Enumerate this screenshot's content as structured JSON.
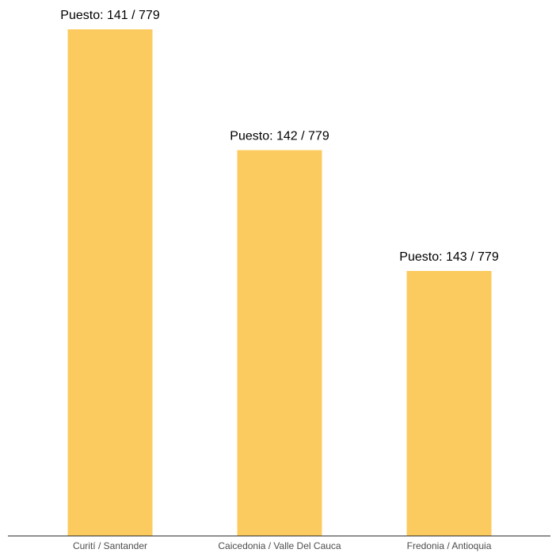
{
  "chart_data": {
    "type": "bar",
    "categories": [
      "Curití / Santander",
      "Caicedonia / Valle Del Cauca",
      "Fredonia / Antioquia"
    ],
    "values": [
      141,
      142,
      143
    ],
    "data_labels": [
      "Puesto: 141 / 779",
      "Puesto: 142 / 779",
      "Puesto: 143 / 779"
    ],
    "title": "",
    "xlabel": "",
    "ylabel": "",
    "y_scale": "reversed-rank",
    "bar_color": "#FCCB5F",
    "axis_color": "#333333",
    "grid": false,
    "legend": "none"
  }
}
